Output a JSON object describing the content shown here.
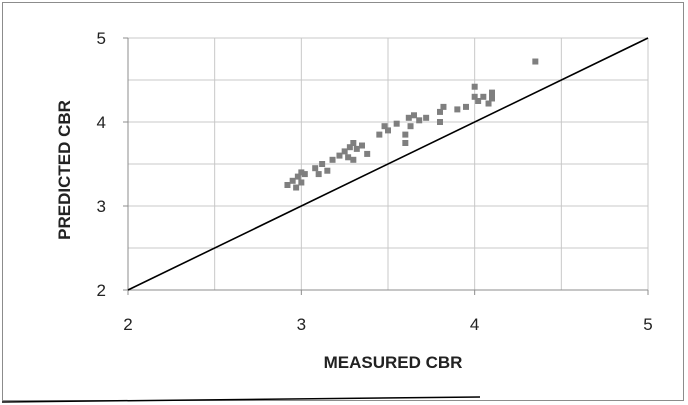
{
  "chart_data": {
    "type": "scatter",
    "title": "",
    "xlabel": "MEASURED CBR",
    "ylabel": "PREDICTED CBR",
    "xlim": [
      2,
      5
    ],
    "ylim": [
      2,
      5
    ],
    "xticks": [
      "2",
      "3",
      "4",
      "5"
    ],
    "yticks": [
      "2",
      "3",
      "4",
      "5"
    ],
    "grid": true,
    "legend": "none",
    "colors": {
      "points": "#7f7f7f",
      "line": "#000000",
      "grid": "#c8c8c8"
    },
    "reference_line": {
      "x": [
        2,
        5
      ],
      "y": [
        2,
        5
      ]
    },
    "series": [
      {
        "x": [
          2.92,
          2.95,
          2.97,
          2.98,
          3.0,
          3.0,
          3.02,
          3.08,
          3.1,
          3.12,
          3.15,
          3.18,
          3.22,
          3.25,
          3.27,
          3.28,
          3.3,
          3.3,
          3.32,
          3.35,
          3.38,
          3.45,
          3.48,
          3.5,
          3.55,
          3.6,
          3.6,
          3.62,
          3.63,
          3.65,
          3.68,
          3.72,
          3.8,
          3.8,
          3.82,
          3.9,
          3.95,
          4.0,
          4.0,
          4.02,
          4.05,
          4.08,
          4.1,
          4.1,
          4.35
        ],
        "y": [
          3.25,
          3.3,
          3.22,
          3.35,
          3.28,
          3.4,
          3.38,
          3.45,
          3.38,
          3.5,
          3.42,
          3.55,
          3.6,
          3.65,
          3.58,
          3.7,
          3.55,
          3.75,
          3.68,
          3.72,
          3.62,
          3.85,
          3.95,
          3.9,
          3.98,
          3.75,
          3.85,
          4.05,
          3.95,
          4.08,
          4.02,
          4.05,
          4.0,
          4.12,
          4.18,
          4.15,
          4.18,
          4.3,
          4.42,
          4.25,
          4.3,
          4.22,
          4.35,
          4.28,
          4.72
        ]
      }
    ]
  }
}
